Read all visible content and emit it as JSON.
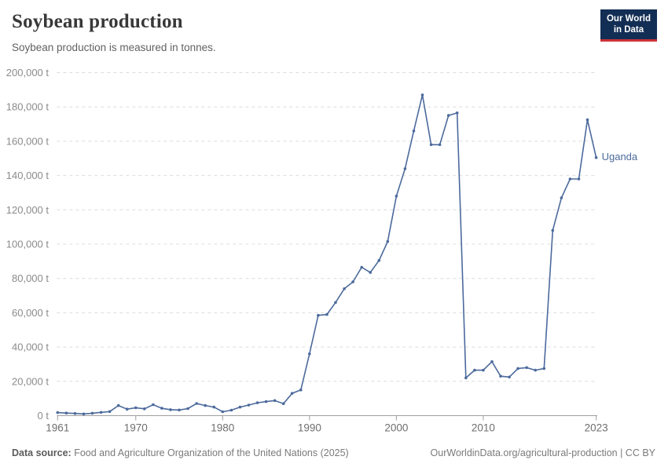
{
  "header": {
    "title": "Soybean production",
    "subtitle": "Soybean production is measured in tonnes.",
    "logo": {
      "line1": "Our World",
      "line2": "in Data"
    }
  },
  "chart_data": {
    "type": "line",
    "title": "Soybean production",
    "ylabel": "",
    "xlabel": "",
    "unit": "t",
    "entity": "Uganda",
    "legend_position": "end-of-line-label",
    "grid": "horizontal-dashed",
    "xlim": [
      1961,
      2023
    ],
    "ylim": [
      0,
      200000
    ],
    "xticks": [
      1961,
      1970,
      1980,
      1990,
      2000,
      2010,
      2023
    ],
    "yticks": [
      0,
      20000,
      40000,
      60000,
      80000,
      100000,
      120000,
      140000,
      160000,
      180000,
      200000
    ],
    "x": [
      1961,
      1962,
      1963,
      1964,
      1965,
      1966,
      1967,
      1968,
      1969,
      1970,
      1971,
      1972,
      1973,
      1974,
      1975,
      1976,
      1977,
      1978,
      1979,
      1980,
      1981,
      1982,
      1983,
      1984,
      1985,
      1986,
      1987,
      1988,
      1989,
      1990,
      1991,
      1992,
      1993,
      1994,
      1995,
      1996,
      1997,
      1998,
      1999,
      2000,
      2001,
      2002,
      2003,
      2004,
      2005,
      2006,
      2007,
      2008,
      2009,
      2010,
      2011,
      2012,
      2013,
      2014,
      2015,
      2016,
      2017,
      2018,
      2019,
      2020,
      2021,
      2022,
      2023
    ],
    "series": [
      {
        "name": "Uganda",
        "values": [
          1800,
          1500,
          1300,
          1000,
          1400,
          1900,
          2400,
          5900,
          3800,
          4600,
          4000,
          6400,
          4300,
          3500,
          3300,
          4100,
          7100,
          5900,
          5000,
          2300,
          3200,
          5000,
          6200,
          7500,
          8200,
          8800,
          7000,
          13000,
          15000,
          36000,
          58500,
          59000,
          66000,
          74000,
          78000,
          86500,
          83500,
          90500,
          101500,
          128000,
          144000,
          166000,
          187000,
          158000,
          158000,
          175000,
          176500,
          22000,
          26500,
          26500,
          31500,
          23000,
          22500,
          27500,
          28000,
          26500,
          27500,
          108000,
          127000,
          138000,
          138000,
          172500,
          150500
        ]
      }
    ]
  },
  "colors": {
    "line": "#4C6A9C",
    "entity_label": "#4C6A9C",
    "grid": "#dcdcdc",
    "axis": "#9e9e9e",
    "y_tick_label": "#8b8b8b",
    "x_tick_label": "#6f6f6f",
    "logo_bg": "#132e54",
    "logo_red": "#cf3139"
  },
  "footer": {
    "source_label": "Data source:",
    "source_text": " Food and Agriculture Organization of the United Nations (2025)",
    "credit_text": "OurWorldinData.org/agricultural-production | CC BY"
  }
}
